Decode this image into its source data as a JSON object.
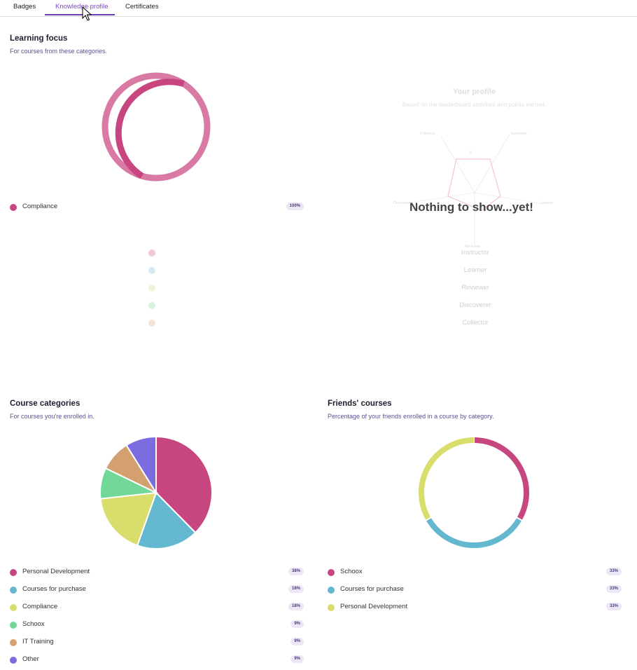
{
  "tabs": [
    {
      "label": "Badges"
    },
    {
      "label": "Knowledge profile"
    },
    {
      "label": "Certificates"
    }
  ],
  "learning_focus": {
    "title": "Learning focus",
    "subtitle": "For courses from these categories.",
    "chart_data": {
      "type": "pie",
      "style": "donut",
      "categories": [
        "Compliance"
      ],
      "values": [
        100
      ],
      "colors": [
        "#c8467f"
      ],
      "labels": [
        "100%"
      ]
    },
    "legend": [
      {
        "label": "Compliance",
        "pct": "100%",
        "color": "#c8467f"
      }
    ]
  },
  "profile": {
    "title": "Your profile",
    "subtitle": "Based on the leaderboard activities and points earned.",
    "empty_message": "Nothing to show...yet!",
    "radar_axes": [
      "Instructor",
      "Learner",
      "Reviewer",
      "Discoverer",
      "Collector"
    ],
    "radar_center_label": "5",
    "legend": [
      {
        "label": "Instructor",
        "color": "#e9b6c9"
      },
      {
        "label": "Learner",
        "color": "#bfe0ea"
      },
      {
        "label": "Reviewer",
        "color": "#eef1c9"
      },
      {
        "label": "Discoverer",
        "color": "#c7eed2"
      },
      {
        "label": "Collector",
        "color": "#f4d7c6"
      }
    ]
  },
  "course_categories": {
    "title": "Course categories",
    "subtitle": "For courses you're enrolled in.",
    "chart_data": {
      "type": "pie",
      "categories": [
        "Personal Development",
        "Courses for purchase",
        "Compliance",
        "Schoox",
        "IT Training",
        "Other"
      ],
      "values": [
        38,
        18,
        18,
        9,
        9,
        9
      ],
      "colors": [
        "#c8467f",
        "#63b8cf",
        "#d9dd6c",
        "#72d897",
        "#d4a070",
        "#7b6ddf"
      ]
    },
    "legend": [
      {
        "label": "Personal Development",
        "pct": "38%",
        "color": "#c8467f"
      },
      {
        "label": "Courses for purchase",
        "pct": "18%",
        "color": "#63b8cf"
      },
      {
        "label": "Compliance",
        "pct": "18%",
        "color": "#d9dd6c"
      },
      {
        "label": "Schoox",
        "pct": "9%",
        "color": "#72d897"
      },
      {
        "label": "IT Training",
        "pct": "9%",
        "color": "#d4a070"
      },
      {
        "label": "Other",
        "pct": "9%",
        "color": "#7b6ddf"
      }
    ]
  },
  "friends_courses": {
    "title": "Friends' courses",
    "subtitle": "Percentage of your friends enrolled in a course by category.",
    "chart_data": {
      "type": "pie",
      "style": "donut",
      "categories": [
        "Schoox",
        "Courses for purchase",
        "Personal Development"
      ],
      "values": [
        33,
        33,
        33
      ],
      "colors": [
        "#c8467f",
        "#63b8cf",
        "#d9dd6c"
      ]
    },
    "legend": [
      {
        "label": "Schoox",
        "pct": "33%",
        "color": "#c8467f"
      },
      {
        "label": "Courses for purchase",
        "pct": "33%",
        "color": "#63b8cf"
      },
      {
        "label": "Personal Development",
        "pct": "33%",
        "color": "#d9dd6c"
      }
    ]
  }
}
